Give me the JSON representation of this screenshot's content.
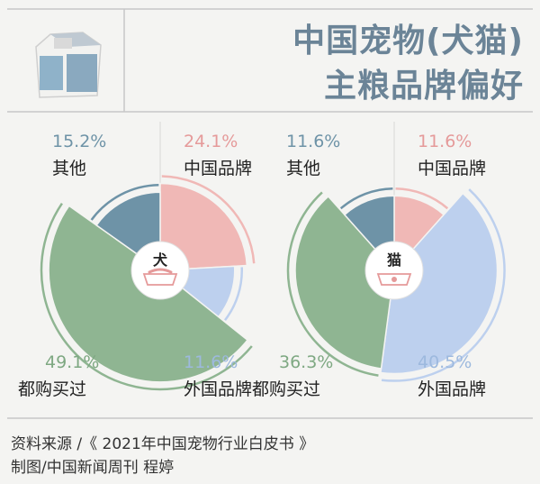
{
  "header": {
    "title_line1": "中国宠物(犬猫)",
    "title_line2": "主粮品牌偏好",
    "icon": "pet-food-bag-icon"
  },
  "chart_data": [
    {
      "type": "pie",
      "center_label": "犬",
      "center_icon": "bone-bowl-icon",
      "slices": [
        {
          "label": "中国品牌",
          "value": 24.1,
          "display": "24.1%",
          "color": "#f0b8b6"
        },
        {
          "label": "外国品牌",
          "value": 11.6,
          "display": "11.6%",
          "color": "#bdd0ee"
        },
        {
          "label": "都购买过",
          "value": 49.1,
          "display": "49.1%",
          "color": "#8fb592"
        },
        {
          "label": "其他",
          "value": 15.2,
          "display": "15.2%",
          "color": "#6e93a7"
        }
      ]
    },
    {
      "type": "pie",
      "center_label": "猫",
      "center_icon": "cat-bowl-icon",
      "slices": [
        {
          "label": "中国品牌",
          "value": 11.6,
          "display": "11.6%",
          "color": "#f0b8b6"
        },
        {
          "label": "外国品牌",
          "value": 40.5,
          "display": "40.5%",
          "color": "#bdd0ee"
        },
        {
          "label": "都购买过",
          "value": 36.3,
          "display": "36.3%",
          "color": "#8fb592"
        },
        {
          "label": "其他",
          "value": 11.6,
          "display": "11.6%",
          "color": "#6e93a7"
        }
      ]
    }
  ],
  "source": {
    "line1": "资料来源 /《 2021年中国宠物行业白皮书 》",
    "line2": "制图/中国新闻周刊 程婷"
  }
}
